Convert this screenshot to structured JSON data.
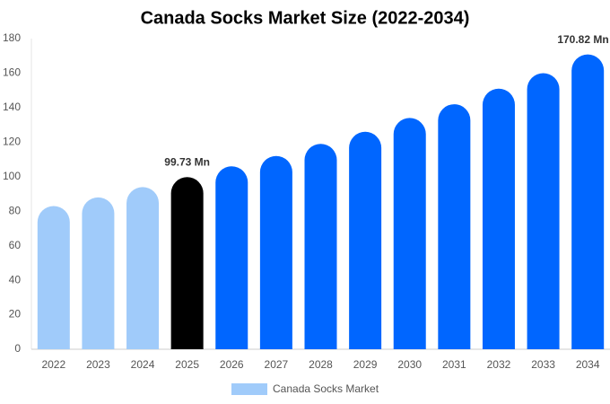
{
  "chart_data": {
    "type": "bar",
    "title": "Canada Socks Market Size (2022-2034)",
    "categories": [
      "2022",
      "2023",
      "2024",
      "2025",
      "2026",
      "2027",
      "2028",
      "2029",
      "2030",
      "2031",
      "2032",
      "2033",
      "2034"
    ],
    "series": [
      {
        "name": "Canada Socks Market",
        "color": "#a0cbfa",
        "values": [
          83,
          88,
          94,
          99.73,
          106,
          112,
          119,
          126,
          134,
          142,
          151,
          160,
          170.82
        ],
        "value_labels": [
          null,
          null,
          null,
          "99.73 Mn",
          null,
          null,
          null,
          null,
          null,
          null,
          null,
          null,
          "170.82 Mn"
        ],
        "colors": [
          "#a0cbfa",
          "#a0cbfa",
          "#a0cbfa",
          "#000000",
          "#0066ff",
          "#0066ff",
          "#0066ff",
          "#0066ff",
          "#0066ff",
          "#0066ff",
          "#0066ff",
          "#0066ff",
          "#0066ff"
        ]
      }
    ],
    "ylim": [
      0,
      180
    ],
    "yticks": [
      0,
      20,
      40,
      60,
      80,
      100,
      120,
      140,
      160,
      180
    ],
    "grid": false
  }
}
